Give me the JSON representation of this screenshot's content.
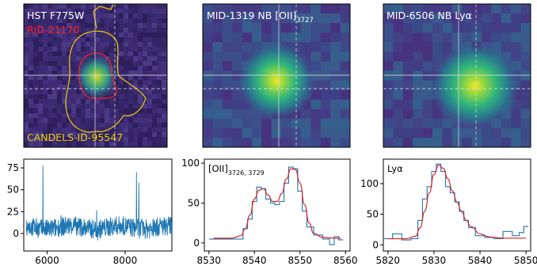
{
  "images": [
    {
      "label1": "HST F775W",
      "label2": "RID-21170",
      "label3": "CANDELS-ID-95547"
    },
    {
      "label_main": "MID-1319 NB [OII]",
      "label_sub": "3727"
    },
    {
      "label_main": "MID-6506 NB Lyα"
    }
  ],
  "colors": {
    "bg_dark": "#3b2a6b",
    "spectrum": "#1f77b4",
    "fit": "#d62728",
    "contour_yellow": "#e8c20c",
    "label_red": "#ff2020"
  },
  "chart_data": [
    {
      "type": "line",
      "xlim": [
        5400,
        9200
      ],
      "ylim": [
        -20,
        85
      ],
      "xticks": [
        6000,
        8000
      ],
      "yticks": [
        0,
        25,
        50,
        75
      ],
      "spikes": [
        {
          "x": 5890,
          "y": 78
        },
        {
          "x": 8290,
          "y": 70
        },
        {
          "x": 8350,
          "y": 58
        }
      ],
      "noise_level": 8
    },
    {
      "type": "line",
      "annotation_main": "[OII]",
      "annotation_sub": "3726, 3729",
      "xlim": [
        8529,
        8561
      ],
      "ylim": [
        -10,
        105
      ],
      "xticks": [
        8530,
        8540,
        8550,
        8560
      ],
      "yticks": [
        0,
        50,
        100
      ],
      "x": [
        8531,
        8533,
        8535,
        8537,
        8538,
        8539,
        8540,
        8541,
        8542,
        8543,
        8544,
        8545,
        8546,
        8547,
        8548,
        8549,
        8550,
        8551,
        8552,
        8554,
        8556,
        8557,
        8558,
        8559
      ],
      "y": [
        5,
        5,
        5,
        5,
        18,
        30,
        52,
        70,
        68,
        55,
        50,
        48,
        52,
        75,
        95,
        93,
        65,
        40,
        20,
        10,
        5,
        -2,
        8,
        4
      ],
      "fit": [
        [
          8531,
          6
        ],
        [
          8535,
          6
        ],
        [
          8537,
          9
        ],
        [
          8538,
          18
        ],
        [
          8539,
          35
        ],
        [
          8540,
          55
        ],
        [
          8541,
          66
        ],
        [
          8542,
          68
        ],
        [
          8543,
          60
        ],
        [
          8544,
          52
        ],
        [
          8545,
          52
        ],
        [
          8546,
          62
        ],
        [
          8547,
          80
        ],
        [
          8548,
          93
        ],
        [
          8549,
          92
        ],
        [
          8550,
          75
        ],
        [
          8551,
          48
        ],
        [
          8552,
          25
        ],
        [
          8553,
          12
        ],
        [
          8555,
          7
        ],
        [
          8558,
          6
        ],
        [
          8559,
          6
        ]
      ]
    },
    {
      "type": "line",
      "annotation": "Lyα",
      "xlim": [
        5819,
        5851
      ],
      "ylim": [
        -10,
        140
      ],
      "xticks": [
        5820,
        5830,
        5840,
        5850
      ],
      "yticks": [
        0,
        50,
        100
      ],
      "x": [
        5820,
        5822,
        5824,
        5826,
        5827,
        5828,
        5829,
        5830,
        5831,
        5832,
        5833,
        5834,
        5835,
        5836,
        5837,
        5838,
        5840,
        5842,
        5844,
        5846,
        5848,
        5849,
        5850
      ],
      "y": [
        10,
        18,
        8,
        10,
        40,
        75,
        95,
        120,
        132,
        120,
        95,
        85,
        70,
        55,
        40,
        28,
        15,
        12,
        10,
        22,
        15,
        20,
        30
      ],
      "fit": [
        [
          5820,
          10
        ],
        [
          5824,
          10
        ],
        [
          5826,
          14
        ],
        [
          5827,
          28
        ],
        [
          5828,
          55
        ],
        [
          5829,
          85
        ],
        [
          5830,
          115
        ],
        [
          5831,
          130
        ],
        [
          5832,
          125
        ],
        [
          5833,
          108
        ],
        [
          5834,
          88
        ],
        [
          5835,
          70
        ],
        [
          5836,
          54
        ],
        [
          5837,
          40
        ],
        [
          5838,
          30
        ],
        [
          5840,
          18
        ],
        [
          5842,
          13
        ],
        [
          5845,
          11
        ],
        [
          5850,
          11
        ]
      ]
    }
  ]
}
